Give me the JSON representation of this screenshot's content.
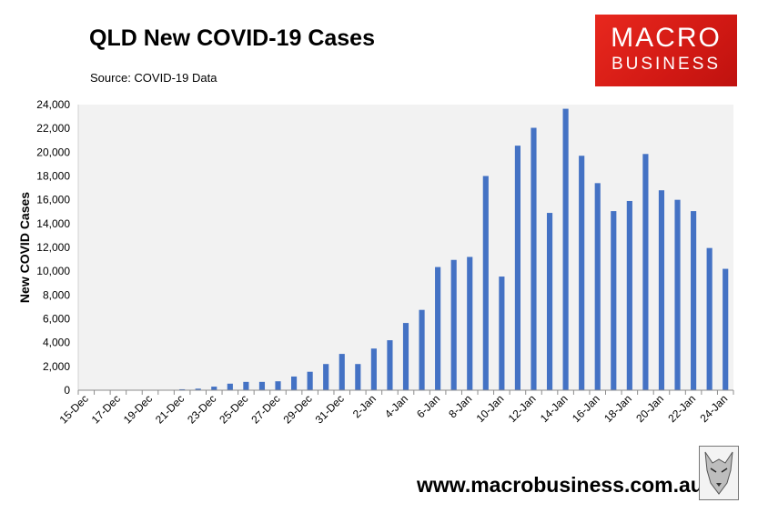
{
  "header": {
    "title": "QLD New COVID-19 Cases",
    "source": "Source: COVID-19 Data"
  },
  "logo": {
    "line1": "MACRO",
    "line2": "BUSINESS",
    "color": "#d21914"
  },
  "footer": {
    "website": "www.macrobusiness.com.au"
  },
  "chart_data": {
    "type": "bar",
    "title": "QLD New COVID-19 Cases",
    "xlabel": "",
    "ylabel": "New COVID Cases",
    "ylim": [
      0,
      24000
    ],
    "yticks": [
      0,
      2000,
      4000,
      6000,
      8000,
      10000,
      12000,
      14000,
      16000,
      18000,
      20000,
      22000,
      24000
    ],
    "ytick_labels": [
      "0",
      "2,000",
      "4,000",
      "6,000",
      "8,000",
      "10,000",
      "12,000",
      "14,000",
      "16,000",
      "18,000",
      "20,000",
      "22,000",
      "24,000"
    ],
    "grid": false,
    "bar_color": "#4472c4",
    "plot_background": "#f2f2f2",
    "categories": [
      "15-Dec",
      "16-Dec",
      "17-Dec",
      "18-Dec",
      "19-Dec",
      "20-Dec",
      "21-Dec",
      "22-Dec",
      "23-Dec",
      "24-Dec",
      "25-Dec",
      "26-Dec",
      "27-Dec",
      "28-Dec",
      "29-Dec",
      "30-Dec",
      "31-Dec",
      "1-Jan",
      "2-Jan",
      "3-Jan",
      "4-Jan",
      "5-Jan",
      "6-Jan",
      "7-Jan",
      "8-Jan",
      "9-Jan",
      "10-Jan",
      "11-Jan",
      "12-Jan",
      "13-Jan",
      "14-Jan",
      "15-Jan",
      "16-Jan",
      "17-Jan",
      "18-Jan",
      "19-Jan",
      "20-Jan",
      "21-Jan",
      "22-Jan",
      "23-Jan",
      "24-Jan"
    ],
    "xtick_labels": [
      "15-Dec",
      "17-Dec",
      "19-Dec",
      "21-Dec",
      "23-Dec",
      "25-Dec",
      "27-Dec",
      "29-Dec",
      "31-Dec",
      "2-Jan",
      "4-Jan",
      "6-Jan",
      "8-Jan",
      "10-Jan",
      "12-Jan",
      "14-Jan",
      "16-Jan",
      "18-Jan",
      "20-Jan",
      "22-Jan",
      "24-Jan"
    ],
    "values": [
      0,
      0,
      0,
      0,
      0,
      0,
      80,
      130,
      300,
      550,
      700,
      700,
      750,
      1150,
      1550,
      2200,
      3050,
      2200,
      3500,
      4200,
      5650,
      6750,
      10350,
      10950,
      11200,
      18000,
      9550,
      20550,
      22050,
      14900,
      23650,
      19700,
      17400,
      15050,
      15900,
      19850,
      16800,
      16000,
      15050,
      11950,
      10200
    ]
  }
}
